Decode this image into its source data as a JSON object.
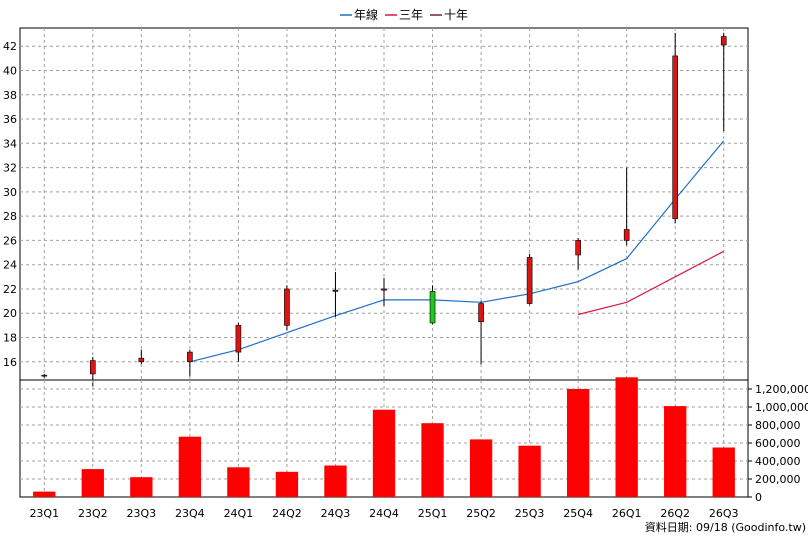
{
  "chart_data": {
    "type": "candlestick",
    "categories": [
      "23Q1",
      "23Q2",
      "23Q3",
      "23Q4",
      "24Q1",
      "24Q2",
      "24Q3",
      "24Q4",
      "25Q1",
      "25Q2",
      "25Q3",
      "25Q4",
      "26Q1",
      "26Q2",
      "26Q3"
    ],
    "legend": [
      {
        "name": "年線",
        "color": "#1e6fc8"
      },
      {
        "name": "三年",
        "color": "#d81b3c"
      },
      {
        "name": "十年",
        "color": "#7a1f4a"
      }
    ],
    "price_axis": {
      "ticks": [
        16,
        18,
        20,
        22,
        24,
        26,
        28,
        30,
        32,
        34,
        36,
        38,
        40,
        42
      ],
      "ylim": [
        14.5,
        43.5
      ]
    },
    "candles": [
      {
        "o": 14.9,
        "h": 15.0,
        "l": 14.7,
        "c": 14.9
      },
      {
        "o": 15.0,
        "h": 16.4,
        "l": 14.0,
        "c": 16.1
      },
      {
        "o": 16.0,
        "h": 17.0,
        "l": 15.8,
        "c": 16.3
      },
      {
        "o": 16.0,
        "h": 17.0,
        "l": 14.8,
        "c": 16.8
      },
      {
        "o": 16.8,
        "h": 19.2,
        "l": 16.0,
        "c": 19.0
      },
      {
        "o": 19.0,
        "h": 22.3,
        "l": 18.6,
        "c": 22.0
      },
      {
        "o": 21.8,
        "h": 23.4,
        "l": 19.7,
        "c": 21.9
      },
      {
        "o": 21.9,
        "h": 22.9,
        "l": 20.6,
        "c": 22.0
      },
      {
        "o": 21.8,
        "h": 22.3,
        "l": 19.1,
        "c": 19.2
      },
      {
        "o": 19.3,
        "h": 21.0,
        "l": 15.8,
        "c": 20.8
      },
      {
        "o": 20.8,
        "h": 24.9,
        "l": 20.7,
        "c": 24.6
      },
      {
        "o": 24.8,
        "h": 26.2,
        "l": 23.6,
        "c": 26.0
      },
      {
        "o": 26.0,
        "h": 32.0,
        "l": 25.6,
        "c": 26.9
      },
      {
        "o": 27.8,
        "h": 43.1,
        "l": 27.4,
        "c": 41.2
      },
      {
        "o": 42.1,
        "h": 43.1,
        "l": 35.0,
        "c": 42.8
      }
    ],
    "series": [
      {
        "name": "年線",
        "values": [
          null,
          null,
          null,
          16.0,
          17.0,
          18.4,
          19.8,
          21.1,
          21.1,
          20.9,
          21.6,
          22.6,
          24.5,
          29.4,
          34.2
        ]
      },
      {
        "name": "三年",
        "values": [
          null,
          null,
          null,
          null,
          null,
          null,
          null,
          null,
          null,
          null,
          null,
          19.9,
          20.9,
          23.0,
          25.1
        ]
      }
    ],
    "volume": [
      60000,
      310000,
      220000,
      670000,
      330000,
      280000,
      350000,
      970000,
      820000,
      640000,
      570000,
      1200000,
      1330000,
      1010000,
      550000
    ],
    "volume_axis": {
      "ticks": [
        0,
        200000,
        400000,
        600000,
        800000,
        1000000,
        1200000
      ],
      "tick_labels": [
        "0",
        "200,000",
        "400,000",
        "600,000",
        "800,000",
        "1,000,000",
        "1,200,000"
      ],
      "ylim": [
        0,
        1300000
      ]
    }
  },
  "credit": "資料日期: 09/18  (Goodinfo.tw)",
  "colors": {
    "up": "#dc1414",
    "down": "#1ec81e",
    "volume": "#ff0000",
    "grid": "#a0a0a0"
  }
}
